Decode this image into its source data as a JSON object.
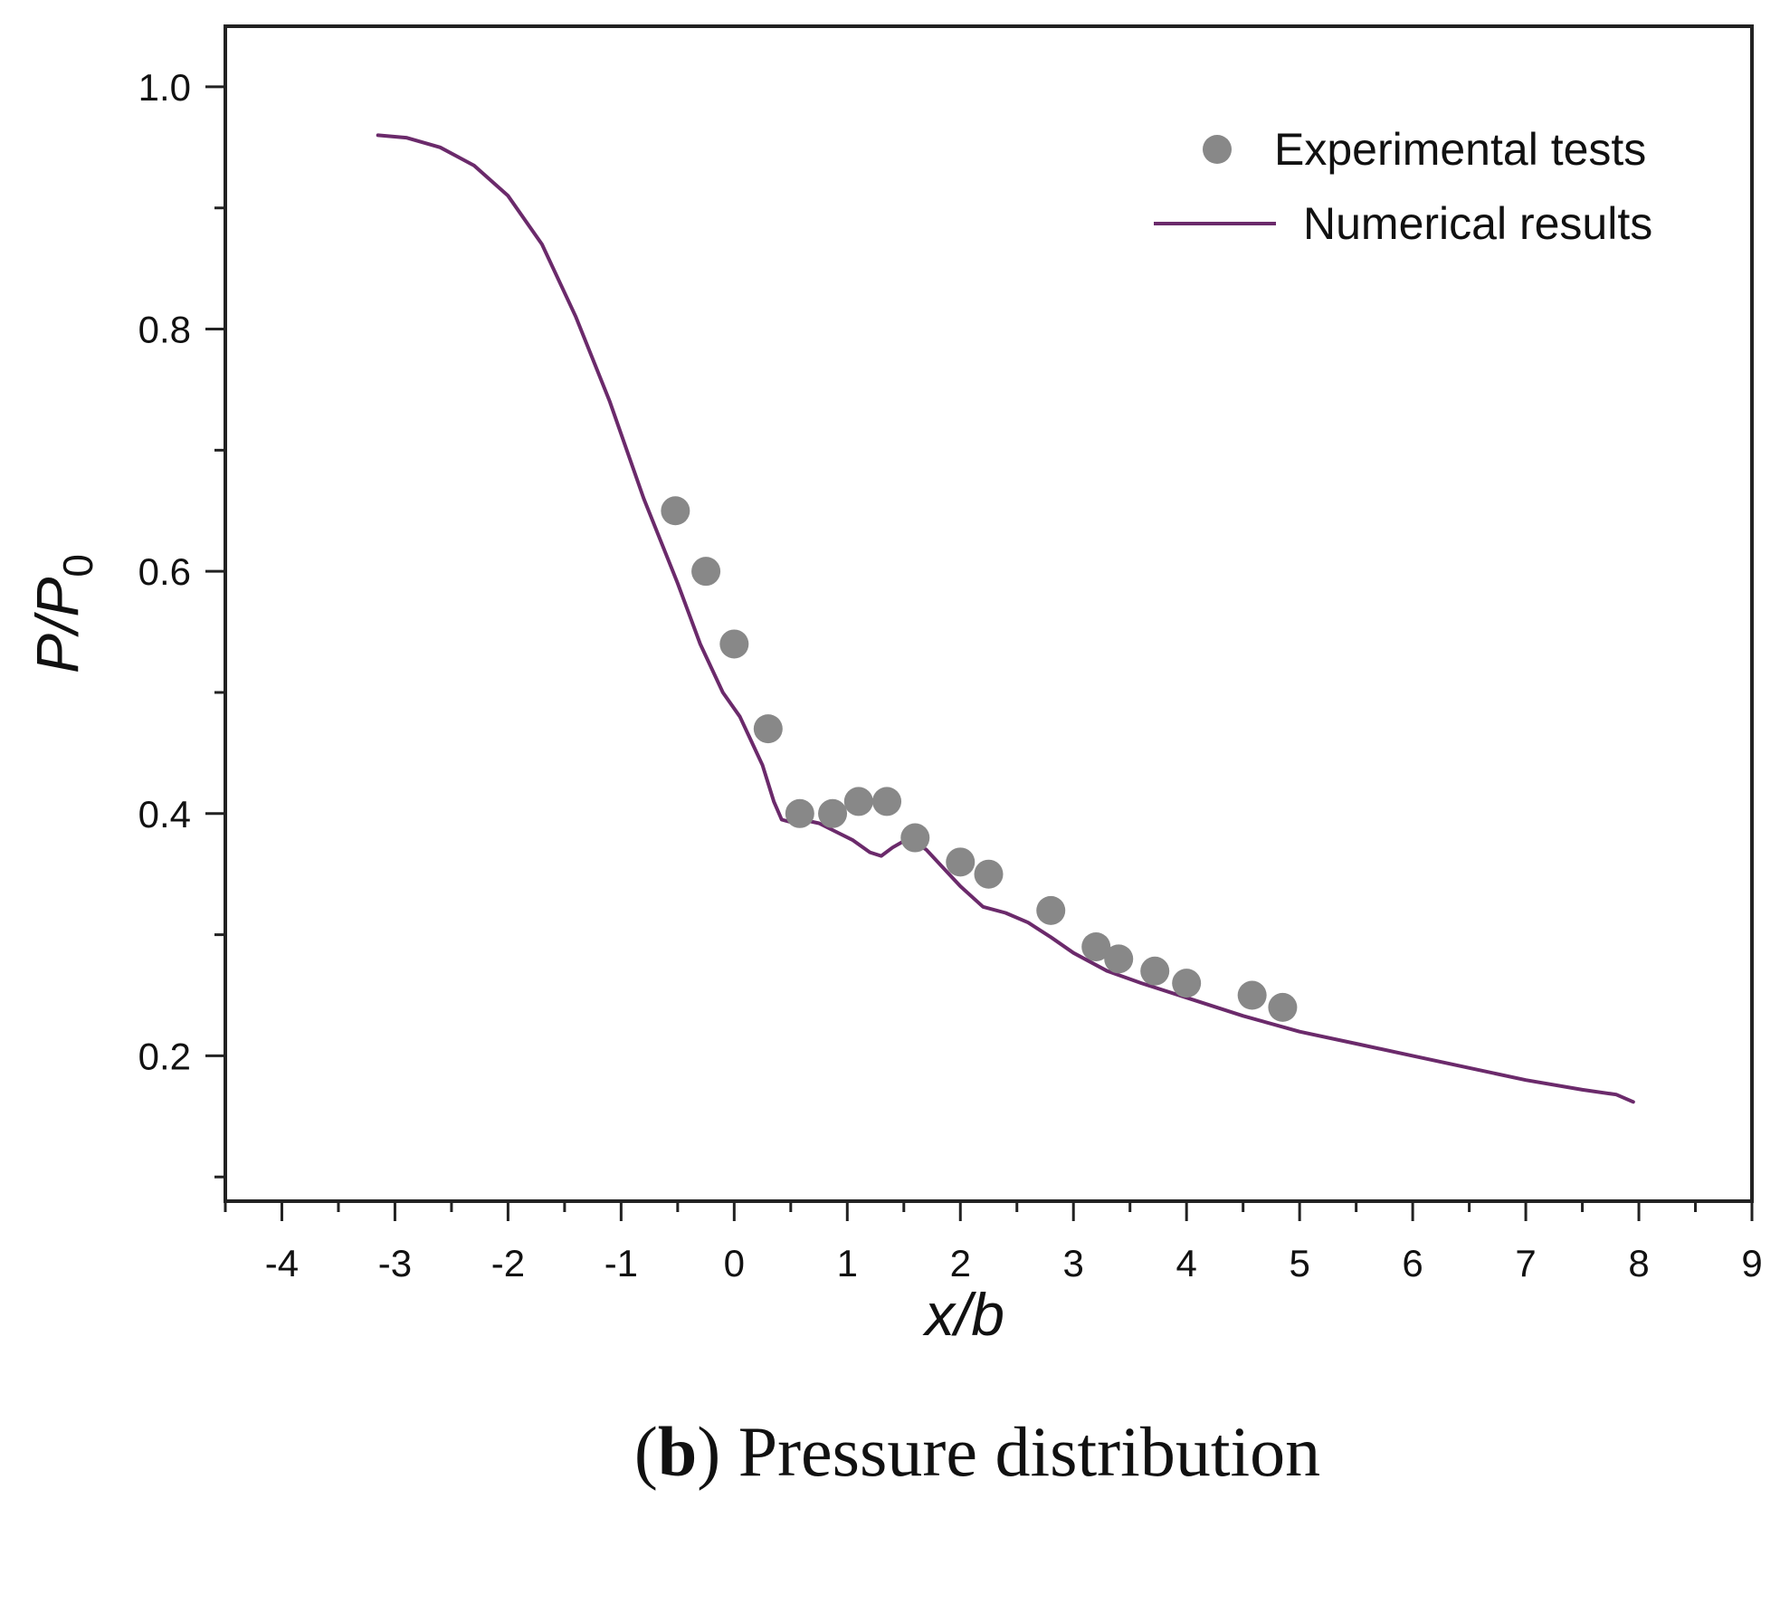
{
  "chart_data": {
    "type": "scatter",
    "xlabel": "x/b",
    "ylabel": "P/P0",
    "ylabel_main": "P/P",
    "ylabel_sub": "0",
    "xlim": [
      -4.5,
      9
    ],
    "ylim": [
      0.08,
      1.05
    ],
    "x_ticks": [
      -4,
      -3,
      -2,
      -1,
      0,
      1,
      2,
      3,
      4,
      5,
      6,
      7,
      8,
      9
    ],
    "x_tick_labels": [
      "-4",
      "-3",
      "-2",
      "-1",
      "0",
      "1",
      "2",
      "3",
      "4",
      "5",
      "6",
      "7",
      "8",
      "9"
    ],
    "y_ticks": [
      0.2,
      0.4,
      0.6,
      0.8,
      1.0
    ],
    "y_tick_labels": [
      "0.2",
      "0.4",
      "0.6",
      "0.8",
      "1.0"
    ],
    "grid": false,
    "legend_position": "top-right",
    "series": [
      {
        "name": "Experimental tests",
        "kind": "scatter",
        "color": "#888888",
        "x": [
          -0.52,
          -0.25,
          0.0,
          0.3,
          0.58,
          0.87,
          1.1,
          1.35,
          1.6,
          2.0,
          2.25,
          2.8,
          3.2,
          3.4,
          3.72,
          4.0,
          4.58,
          4.85
        ],
        "y": [
          0.65,
          0.6,
          0.54,
          0.47,
          0.4,
          0.4,
          0.41,
          0.41,
          0.38,
          0.36,
          0.35,
          0.32,
          0.29,
          0.28,
          0.27,
          0.26,
          0.25,
          0.24
        ]
      },
      {
        "name": "Numerical results",
        "kind": "line",
        "color": "#6b2a6b",
        "x": [
          -3.15,
          -2.9,
          -2.6,
          -2.3,
          -2.0,
          -1.7,
          -1.4,
          -1.1,
          -0.8,
          -0.5,
          -0.3,
          -0.1,
          0.05,
          0.15,
          0.25,
          0.35,
          0.42,
          0.5,
          0.6,
          0.75,
          0.9,
          1.05,
          1.2,
          1.3,
          1.4,
          1.55,
          1.7,
          1.85,
          2.0,
          2.2,
          2.4,
          2.6,
          2.8,
          3.0,
          3.3,
          3.6,
          4.0,
          4.5,
          5.0,
          5.5,
          6.0,
          6.5,
          7.0,
          7.5,
          7.8,
          7.95
        ],
        "y": [
          0.96,
          0.958,
          0.95,
          0.935,
          0.91,
          0.87,
          0.81,
          0.74,
          0.66,
          0.59,
          0.54,
          0.5,
          0.48,
          0.46,
          0.44,
          0.41,
          0.395,
          0.393,
          0.395,
          0.392,
          0.385,
          0.378,
          0.368,
          0.365,
          0.372,
          0.38,
          0.37,
          0.355,
          0.34,
          0.323,
          0.318,
          0.31,
          0.298,
          0.285,
          0.27,
          0.26,
          0.248,
          0.233,
          0.22,
          0.21,
          0.2,
          0.19,
          0.18,
          0.172,
          0.168,
          0.162
        ]
      }
    ]
  },
  "caption": {
    "open_paren": "(",
    "letter": "b",
    "rest": ") Pressure distribution"
  }
}
